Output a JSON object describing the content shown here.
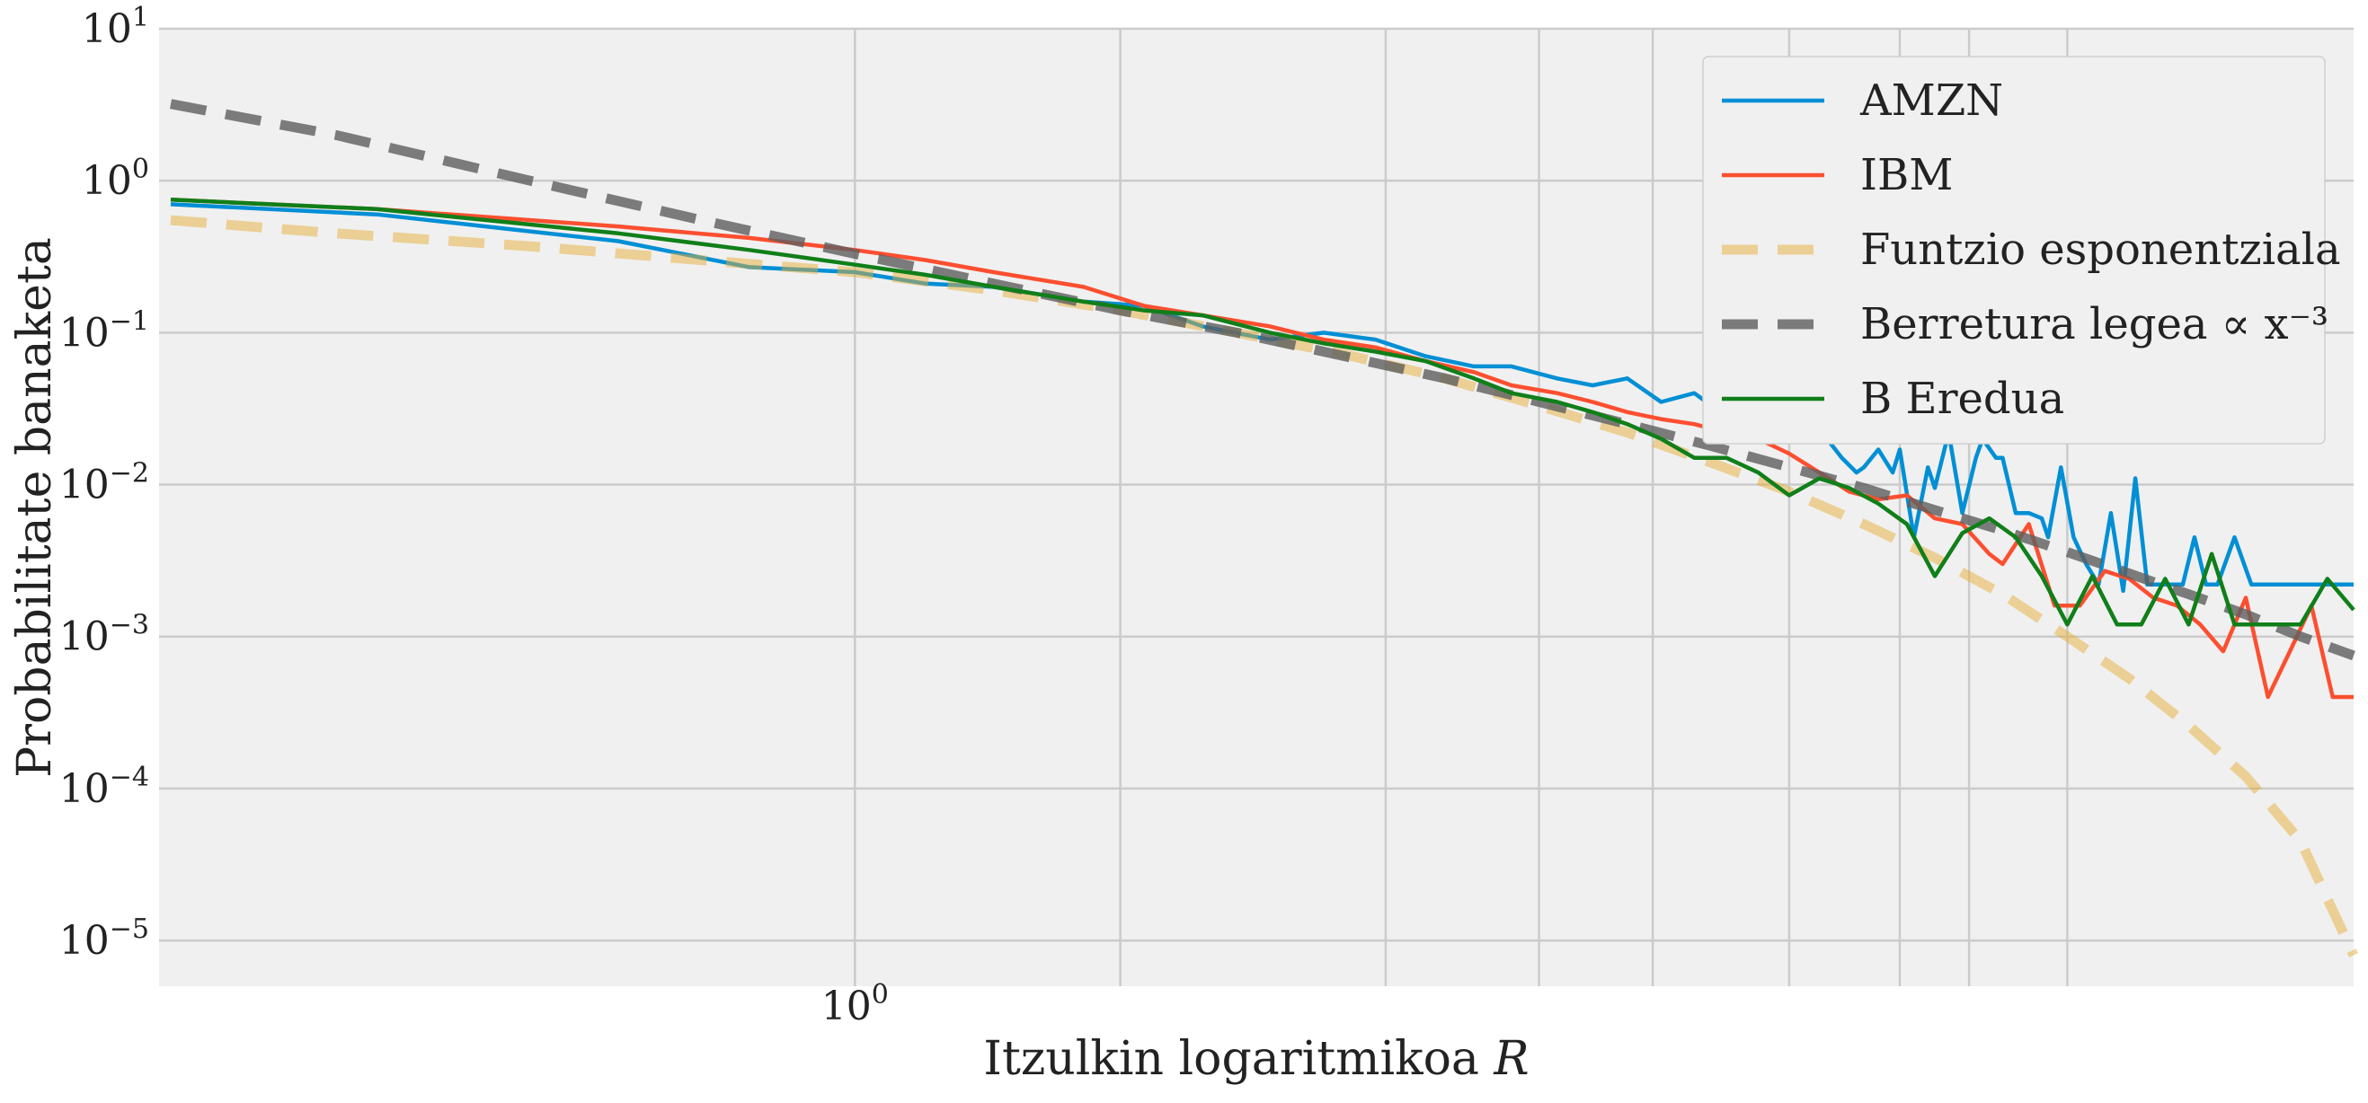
{
  "chart_data": {
    "type": "line",
    "xscale": "log",
    "yscale": "log",
    "xlabel_text": "Itzulkin logaritmikoa ",
    "xlabel_var": "R",
    "ylabel": "Probabilitate banaketa",
    "xlim": [
      0.62,
      2.8
    ],
    "ylim": [
      5e-06,
      10
    ],
    "grid": true,
    "legend_position": "top-right",
    "x_ticks": [
      {
        "base": "10",
        "exp": "0",
        "value": 1.0
      }
    ],
    "x_minor_gridlines": [
      1.0,
      1.2,
      1.44,
      1.6,
      1.73,
      1.9,
      2.05,
      2.15,
      2.3
    ],
    "y_ticks": [
      {
        "base": "10",
        "exp": "1",
        "value": 10
      },
      {
        "base": "10",
        "exp": "0",
        "value": 1
      },
      {
        "base": "10",
        "exp": "−1",
        "value": 0.1
      },
      {
        "base": "10",
        "exp": "−2",
        "value": 0.01
      },
      {
        "base": "10",
        "exp": "−3",
        "value": 0.001
      },
      {
        "base": "10",
        "exp": "−4",
        "value": 0.0001
      },
      {
        "base": "10",
        "exp": "−5",
        "value": 1e-05
      }
    ],
    "series": [
      {
        "name": "AMZN",
        "color": "#008fd5",
        "style": "solid",
        "x": [
          0.625,
          0.72,
          0.85,
          0.93,
          1.0,
          1.05,
          1.1,
          1.17,
          1.22,
          1.27,
          1.33,
          1.38,
          1.43,
          1.48,
          1.53,
          1.57,
          1.62,
          1.66,
          1.7,
          1.74,
          1.78,
          1.82,
          1.86,
          1.89,
          1.92,
          1.95,
          1.97,
          1.99,
          2.0,
          2.02,
          2.04,
          2.05,
          2.07,
          2.09,
          2.1,
          2.12,
          2.14,
          2.16,
          2.17,
          2.19,
          2.2,
          2.22,
          2.24,
          2.26,
          2.27,
          2.29,
          2.31,
          2.33,
          2.35,
          2.37,
          2.39,
          2.41,
          2.43,
          2.45,
          2.47,
          2.49,
          2.51,
          2.53,
          2.55,
          2.58,
          2.61,
          2.65,
          2.7,
          2.75,
          2.8
        ],
        "y": [
          0.7,
          0.6,
          0.4,
          0.27,
          0.25,
          0.21,
          0.2,
          0.16,
          0.15,
          0.11,
          0.09,
          0.1,
          0.09,
          0.07,
          0.06,
          0.06,
          0.05,
          0.045,
          0.05,
          0.035,
          0.04,
          0.028,
          0.025,
          0.028,
          0.022,
          0.02,
          0.015,
          0.012,
          0.013,
          0.017,
          0.012,
          0.017,
          0.0045,
          0.013,
          0.0095,
          0.022,
          0.0065,
          0.015,
          0.02,
          0.015,
          0.015,
          0.0065,
          0.0065,
          0.006,
          0.0045,
          0.013,
          0.0045,
          0.003,
          0.0022,
          0.0065,
          0.002,
          0.011,
          0.0022,
          0.0022,
          0.0022,
          0.0022,
          0.0045,
          0.0022,
          0.0022,
          0.0045,
          0.0022,
          0.0022,
          0.0022,
          0.0022,
          0.0022
        ]
      },
      {
        "name": "IBM",
        "color": "#fc4f30",
        "style": "solid",
        "x": [
          0.625,
          0.72,
          0.85,
          0.93,
          1.0,
          1.05,
          1.1,
          1.17,
          1.22,
          1.27,
          1.33,
          1.38,
          1.43,
          1.48,
          1.53,
          1.57,
          1.62,
          1.66,
          1.7,
          1.74,
          1.78,
          1.82,
          1.86,
          1.9,
          1.94,
          1.98,
          2.02,
          2.06,
          2.1,
          2.14,
          2.18,
          2.2,
          2.24,
          2.28,
          2.32,
          2.36,
          2.4,
          2.44,
          2.48,
          2.52,
          2.56,
          2.6,
          2.64,
          2.68,
          2.72,
          2.76,
          2.8
        ],
        "y": [
          0.75,
          0.65,
          0.5,
          0.42,
          0.35,
          0.3,
          0.25,
          0.2,
          0.15,
          0.13,
          0.11,
          0.09,
          0.08,
          0.065,
          0.055,
          0.045,
          0.04,
          0.035,
          0.03,
          0.027,
          0.025,
          0.022,
          0.02,
          0.016,
          0.012,
          0.009,
          0.008,
          0.0085,
          0.006,
          0.0055,
          0.0035,
          0.003,
          0.0055,
          0.0016,
          0.0016,
          0.0027,
          0.0024,
          0.0018,
          0.0016,
          0.0012,
          0.0008,
          0.0018,
          0.0004,
          0.0008,
          0.0016,
          0.0004,
          0.0004
        ]
      },
      {
        "name": "Funtzio esponentziala",
        "color": "#e5ae38",
        "style": "dashed",
        "x": [
          0.625,
          0.7,
          0.8,
          0.9,
          1.0,
          1.1,
          1.2,
          1.3,
          1.4,
          1.5,
          1.6,
          1.7,
          1.8,
          1.9,
          2.0,
          2.1,
          2.2,
          2.3,
          2.4,
          2.5,
          2.6,
          2.7,
          2.8
        ],
        "y": [
          0.55,
          0.45,
          0.37,
          0.3,
          0.25,
          0.19,
          0.14,
          0.1,
          0.072,
          0.05,
          0.033,
          0.022,
          0.014,
          0.009,
          0.0055,
          0.0033,
          0.0019,
          0.001,
          0.00053,
          0.00026,
          0.00012,
          4.5e-05,
          8e-06
        ]
      },
      {
        "name": "Berretura legea ∝ x⁻³",
        "color": "#5e5e5e",
        "style": "dashed",
        "x": [
          0.625,
          0.7,
          0.8,
          0.9,
          1.0,
          1.1,
          1.2,
          1.3,
          1.4,
          1.5,
          1.6,
          1.7,
          1.8,
          1.9,
          2.0,
          2.1,
          2.2,
          2.3,
          2.4,
          2.5,
          2.6,
          2.7,
          2.8
        ],
        "y": [
          3.2,
          2.0,
          1.0,
          0.55,
          0.33,
          0.21,
          0.14,
          0.1,
          0.07,
          0.05,
          0.035,
          0.025,
          0.018,
          0.013,
          0.0095,
          0.0068,
          0.005,
          0.0036,
          0.0026,
          0.0019,
          0.0014,
          0.001,
          0.00075
        ]
      },
      {
        "name": "B Eredua",
        "color": "#107f19",
        "style": "solid",
        "x": [
          0.625,
          0.72,
          0.85,
          0.93,
          1.0,
          1.05,
          1.1,
          1.17,
          1.22,
          1.27,
          1.33,
          1.38,
          1.43,
          1.48,
          1.53,
          1.57,
          1.62,
          1.66,
          1.7,
          1.74,
          1.78,
          1.82,
          1.86,
          1.9,
          1.94,
          1.98,
          2.02,
          2.06,
          2.1,
          2.14,
          2.18,
          2.22,
          2.26,
          2.3,
          2.34,
          2.38,
          2.42,
          2.46,
          2.5,
          2.54,
          2.58,
          2.62,
          2.66,
          2.7,
          2.75,
          2.8
        ],
        "y": [
          0.75,
          0.65,
          0.45,
          0.35,
          0.28,
          0.24,
          0.2,
          0.16,
          0.14,
          0.13,
          0.1,
          0.085,
          0.075,
          0.065,
          0.05,
          0.04,
          0.035,
          0.03,
          0.025,
          0.02,
          0.015,
          0.015,
          0.012,
          0.0085,
          0.011,
          0.0095,
          0.0075,
          0.0055,
          0.0025,
          0.0048,
          0.006,
          0.0045,
          0.0025,
          0.0012,
          0.0025,
          0.0012,
          0.0012,
          0.0024,
          0.0012,
          0.0035,
          0.0012,
          0.0012,
          0.0012,
          0.0012,
          0.0024,
          0.0015
        ]
      }
    ]
  }
}
